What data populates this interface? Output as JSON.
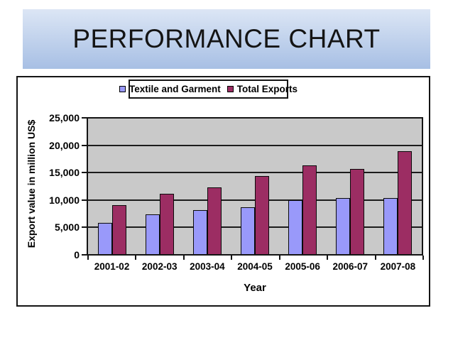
{
  "slide": {
    "title": "PERFORMANCE CHART",
    "banner_gradient_top": "#dce6f5",
    "banner_gradient_bottom": "#a7bfe4"
  },
  "chart_data": {
    "type": "bar",
    "title": "",
    "categories": [
      "2001-02",
      "2002-03",
      "2003-04",
      "2004-05",
      "2005-06",
      "2006-07",
      "2007-08"
    ],
    "series": [
      {
        "name": "Textile and Garment",
        "color": "#9999fa",
        "values": [
          5800,
          7300,
          8100,
          8700,
          9900,
          10400,
          10400
        ]
      },
      {
        "name": "Total Exports",
        "color": "#9c2d63",
        "values": [
          9000,
          11100,
          12300,
          14400,
          16400,
          15700,
          19000
        ]
      }
    ],
    "xlabel": "Year",
    "ylabel": "Export value in million US$",
    "ylim": [
      0,
      25000
    ],
    "ytick_step": 5000,
    "ytick_labels": [
      "0",
      "5,000",
      "10,000",
      "15,000",
      "20,000",
      "25,000"
    ],
    "grid": "horizontal",
    "legend_position": "top-center",
    "plot_bg": "#c9c9c9"
  }
}
